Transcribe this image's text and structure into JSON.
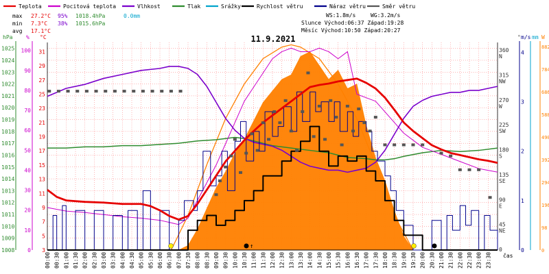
{
  "legend": [
    {
      "label": "Teplota",
      "color": "#e60000"
    },
    {
      "label": "Pocitová teplota",
      "color": "#cc00cc"
    },
    {
      "label": "Vlhkost",
      "color": "#7a00cc"
    },
    {
      "label": "Tlak",
      "color": "#2e8b2e"
    },
    {
      "label": "Srážky",
      "color": "#00a3cc"
    },
    {
      "label": "Rychlost větru",
      "color": "#000000"
    },
    {
      "label": "Náraz větru",
      "color": "#00008b"
    },
    {
      "label": "Směr větru",
      "color": "#555555"
    }
  ],
  "stats": {
    "max": {
      "label": "max",
      "temp": "27.2°C",
      "hum": "95%",
      "press": "1018.4hPa",
      "rain": "0.0mm"
    },
    "min": {
      "label": "min",
      "temp": "7.3°C",
      "hum": "38%",
      "press": "1015.6hPa"
    },
    "avg": {
      "label": "avg",
      "temp": "17.1°C"
    },
    "ws": "WS:1.8m/s",
    "wg": "WG:3.2m/s",
    "sun": "Slunce Východ:06:37  Západ:19:28",
    "moon": "Měsíc  Východ:10:50  Západ:20:27"
  },
  "date_title": "11.9.2021",
  "axis_units": {
    "hpa": "hPa",
    "pct": "%",
    "degc": "°C",
    "deg": "°",
    "ms": "m/s",
    "mm": "mm",
    "w": "W",
    "cas": "čas"
  },
  "colors": {
    "temp": "#e60000",
    "feels": "#cc00cc",
    "humidity": "#7a00cc",
    "pressure": "#2e8b2e",
    "rain": "#00a3cc",
    "wind": "#000000",
    "gust": "#00008b",
    "direction": "#555555",
    "solar": "#ff8000",
    "grid": "#ff0000"
  },
  "chart_data": {
    "type": "line",
    "title": "11.9.2021",
    "x_unit": "hour of day",
    "xlim": [
      0,
      24
    ],
    "x_tick_labels": [
      "00:00",
      "00:30",
      "01:00",
      "01:30",
      "02:00",
      "02:30",
      "03:00",
      "03:30",
      "04:00",
      "04:30",
      "05:00",
      "05:30",
      "06:00",
      "06:30",
      "07:00",
      "07:30",
      "08:00",
      "08:30",
      "09:00",
      "09:30",
      "10:00",
      "10:30",
      "11:00",
      "11:30",
      "12:00",
      "12:30",
      "13:00",
      "13:30",
      "14:00",
      "14:30",
      "15:00",
      "15:30",
      "16:00",
      "16:30",
      "17:00",
      "17:30",
      "18:00",
      "18:30",
      "19:00",
      "19:30",
      "20:00",
      "20:30",
      "21:00",
      "21:30",
      "22:00",
      "22:30",
      "23:00",
      "23:30"
    ],
    "y_axes": {
      "pressure_hpa": {
        "ticks": [
          "1008",
          "1009",
          "1010",
          "1011",
          "1012",
          "1013",
          "1014",
          "1015",
          "1016",
          "1017",
          "1018",
          "1019",
          "1020",
          "1021",
          "1022",
          "1023",
          "1024",
          "1025"
        ],
        "range": [
          1008,
          1025.5
        ]
      },
      "humidity_pct": {
        "ticks": [
          "0",
          "10",
          "20",
          "30",
          "40",
          "50",
          "60",
          "70",
          "80",
          "90",
          "100"
        ],
        "range": [
          0,
          104
        ]
      },
      "temperature_c": {
        "ticks": [
          "3",
          "5",
          "7",
          "9",
          "11",
          "13",
          "15",
          "17",
          "19",
          "21",
          "23",
          "25",
          "27",
          "29",
          "31"
        ],
        "range": [
          3,
          32.3
        ]
      },
      "direction_deg": {
        "ticks": [
          "0",
          "45\nNE",
          "90\nE",
          "135\nSE",
          "180\nS",
          "225\nSW",
          "270\nW",
          "315\nNW",
          "360\nN"
        ],
        "range": [
          0,
          375
        ]
      },
      "wind_ms": {
        "ticks": [
          "0",
          "1",
          "2",
          "3",
          "4"
        ],
        "range": [
          0,
          4.2
        ]
      },
      "solar_w": {
        "ticks": [
          "0",
          "98",
          "196",
          "294",
          "392",
          "490",
          "588",
          "686",
          "784",
          "882"
        ],
        "range": [
          0,
          900
        ]
      }
    },
    "series": [
      {
        "name": "Teplota",
        "axis": "temperature_c",
        "x": [
          0,
          0.5,
          1,
          2,
          3,
          4,
          5,
          5.5,
          6,
          6.5,
          7,
          7.5,
          8,
          8.5,
          9,
          9.5,
          10,
          10.5,
          11,
          11.5,
          12,
          12.5,
          13,
          13.5,
          14,
          14.5,
          15,
          15.5,
          16,
          16.5,
          17,
          17.5,
          18,
          18.5,
          19,
          19.5,
          20,
          20.5,
          21,
          21.5,
          22,
          22.5,
          23,
          23.5,
          24
        ],
        "y": [
          11.5,
          10.5,
          10,
          9.8,
          9.7,
          9.5,
          9.5,
          9.2,
          8.6,
          7.8,
          7.3,
          7.8,
          9.5,
          11.5,
          13.5,
          15.5,
          17,
          18.5,
          19.8,
          21,
          22,
          23,
          24,
          25,
          26,
          26.3,
          26.5,
          26.8,
          27,
          27.2,
          26.6,
          25.8,
          24.5,
          22.8,
          21,
          19.8,
          18.8,
          17.8,
          17.2,
          16.7,
          16.4,
          16.1,
          15.8,
          15.6,
          15.3
        ]
      },
      {
        "name": "Pocitová teplota",
        "axis": "temperature_c",
        "x": [
          0,
          1,
          2,
          3,
          4,
          5,
          6,
          6.5,
          7,
          7.5,
          8,
          8.5,
          9,
          9.5,
          10,
          10.5,
          11,
          11.5,
          12,
          12.5,
          13,
          13.5,
          14,
          14.5,
          15,
          15.5,
          16,
          16.5,
          17,
          17.5,
          18,
          18.5,
          19,
          19.5,
          20,
          21,
          22,
          23,
          24
        ],
        "y": [
          9,
          8.5,
          8.3,
          8,
          7.7,
          7.5,
          7.2,
          6.9,
          6.6,
          7.5,
          10,
          12.5,
          15,
          18,
          21,
          24,
          26,
          28,
          30,
          31,
          31.5,
          31,
          31,
          31.5,
          31,
          30,
          31,
          25,
          24.5,
          24,
          22.5,
          21,
          19.5,
          18.5,
          17.5,
          16.5,
          15.5,
          14.5,
          14
        ]
      },
      {
        "name": "Vlhkost",
        "axis": "humidity_pct",
        "x": [
          0,
          0.5,
          1,
          2,
          3,
          4,
          5,
          6,
          6.5,
          7,
          7.5,
          8,
          8.5,
          9,
          9.5,
          10,
          10.5,
          11,
          11.5,
          12,
          12.5,
          13,
          13.5,
          14,
          14.5,
          15,
          15.5,
          16,
          16.5,
          17,
          17.5,
          18,
          18.5,
          19,
          19.5,
          20,
          20.5,
          21,
          21.5,
          22,
          22.5,
          23,
          23.5,
          24
        ],
        "y": [
          77,
          79,
          81,
          83,
          86,
          88,
          90,
          91,
          92,
          92,
          91,
          88,
          82,
          74,
          66,
          60,
          56,
          54,
          53,
          52,
          50,
          47,
          44,
          42,
          41,
          40,
          40,
          39,
          40,
          41,
          44,
          50,
          58,
          66,
          72,
          75,
          77,
          78,
          79,
          79,
          80,
          80,
          81,
          82
        ]
      },
      {
        "name": "Tlak",
        "axis": "pressure_hpa",
        "x": [
          0,
          1,
          2,
          3,
          4,
          5,
          6,
          7,
          8,
          9,
          10,
          10.5,
          11,
          11.5,
          12,
          13,
          14,
          15,
          15.5,
          16,
          17,
          17.5,
          18,
          18.5,
          19,
          20,
          21,
          22,
          23,
          24
        ],
        "y": [
          1016.6,
          1016.6,
          1016.7,
          1016.7,
          1016.8,
          1016.8,
          1016.9,
          1017.0,
          1017.2,
          1017.3,
          1017.5,
          1017.4,
          1017.2,
          1017.0,
          1016.8,
          1016.6,
          1016.4,
          1016.2,
          1016.0,
          1015.8,
          1015.7,
          1015.6,
          1015.6,
          1015.7,
          1015.9,
          1016.2,
          1016.4,
          1016.3,
          1016.4,
          1016.6
        ]
      },
      {
        "name": "Směr větru",
        "axis": "direction_deg",
        "x": [
          0.1,
          0.6,
          1.1,
          1.6,
          2.1,
          2.6,
          3.1,
          3.6,
          4.1,
          4.6,
          5.1,
          5.6,
          6.1,
          6.6,
          7.1,
          9.0,
          9.2,
          9.5,
          9.8,
          10.0,
          10.3,
          10.6,
          10.9,
          11.2,
          11.5,
          11.8,
          12.1,
          12.4,
          12.7,
          13.0,
          13.3,
          13.6,
          13.9,
          14.2,
          14.5,
          14.8,
          15.1,
          15.4,
          15.7,
          16.0,
          16.3,
          16.6,
          16.9,
          17.2,
          17.5,
          18.0,
          18.5,
          19.0,
          19.5,
          20.0,
          21.0,
          21.5,
          22.0,
          22.5,
          23.0,
          23.6
        ],
        "y": [
          287,
          287,
          287,
          287,
          287,
          287,
          287,
          287,
          287,
          287,
          287,
          287,
          287,
          287,
          287,
          100,
          125,
          150,
          170,
          200,
          140,
          175,
          210,
          180,
          230,
          200,
          250,
          230,
          270,
          215,
          180,
          250,
          320,
          205,
          260,
          200,
          270,
          240,
          190,
          260,
          215,
          255,
          230,
          215,
          240,
          190,
          190,
          190,
          190,
          190,
          175,
          170,
          145,
          145,
          145,
          95
        ]
      },
      {
        "name": "Rychlost větru",
        "axis": "wind_ms",
        "x": [
          0,
          0.5,
          1,
          2,
          3,
          4,
          5,
          6,
          7,
          7.5,
          8,
          8.5,
          9,
          9.5,
          10,
          10.5,
          11,
          11.5,
          12,
          12.5,
          13,
          13.5,
          14,
          14.5,
          15,
          15.5,
          16,
          16.5,
          17,
          17.5,
          18,
          18.5,
          19,
          20,
          21,
          22,
          23,
          24
        ],
        "y": [
          0,
          0,
          0,
          0,
          0,
          0,
          0,
          0,
          0,
          0.4,
          0.6,
          0.7,
          0.5,
          0.6,
          0.8,
          1.0,
          1.2,
          1.5,
          1.5,
          1.8,
          2.0,
          2.2,
          2.5,
          2.0,
          1.7,
          1.9,
          1.8,
          1.9,
          1.6,
          1.4,
          1.0,
          0.6,
          0.3,
          0,
          0,
          0,
          0,
          0
        ]
      },
      {
        "name": "Náraz větru",
        "axis": "wind_ms",
        "x": [
          0,
          0.3,
          0.5,
          0.8,
          1,
          1.5,
          2,
          2.5,
          3,
          3.5,
          4,
          4.3,
          4.8,
          5.1,
          5.5,
          6,
          6.5,
          7,
          7.3,
          7.8,
          8,
          8.3,
          8.7,
          9,
          9.3,
          9.6,
          10,
          10.3,
          10.6,
          11,
          11.3,
          11.6,
          12,
          12.3,
          12.6,
          13,
          13.3,
          13.6,
          14,
          14.3,
          14.6,
          15,
          15.3,
          15.6,
          16,
          16.3,
          16.6,
          17,
          17.3,
          17.6,
          18,
          18.3,
          18.6,
          19,
          19.5,
          20,
          20.5,
          21,
          21.3,
          21.6,
          22,
          22.3,
          22.6,
          23,
          23.3,
          23.6,
          24
        ],
        "y": [
          0,
          0.7,
          0,
          0.9,
          0,
          0.8,
          0,
          0.8,
          0,
          0.7,
          0,
          0.8,
          0,
          1.2,
          0,
          0.8,
          0,
          0.6,
          1.0,
          0.8,
          1.2,
          2.0,
          1.3,
          1.5,
          2.0,
          1.2,
          2.2,
          2.6,
          1.8,
          2.4,
          2.0,
          2.8,
          2.3,
          2.5,
          2.9,
          2.4,
          3.2,
          2.6,
          3.2,
          2.8,
          3.0,
          2.6,
          3.0,
          2.4,
          2.8,
          2.3,
          2.6,
          2.4,
          2.0,
          1.8,
          1.5,
          1.2,
          0.8,
          0.5,
          0,
          0,
          0.6,
          0,
          0.7,
          0.4,
          0.9,
          0.5,
          0.8,
          0,
          0.7,
          0.4,
          0
        ]
      },
      {
        "name": "Sluneční záření",
        "axis": "solar_w",
        "x": [
          7,
          7.5,
          8,
          8.5,
          9,
          9.5,
          10,
          10.5,
          11,
          11.5,
          12,
          12.5,
          13,
          13.5,
          14,
          14.5,
          15,
          15.5,
          16,
          16.5,
          17,
          17.5,
          18,
          18.5,
          19,
          19.5
        ],
        "y": [
          0,
          20,
          90,
          180,
          270,
          340,
          420,
          480,
          560,
          640,
          690,
          740,
          760,
          840,
          860,
          800,
          740,
          780,
          700,
          720,
          540,
          400,
          300,
          170,
          60,
          0
        ]
      },
      {
        "name": "Teoretické záření",
        "axis": "solar_w",
        "x": [
          6.6,
          7.5,
          8.5,
          9.5,
          10.5,
          11.5,
          12.5,
          13.0,
          13.5,
          14.5,
          15.5,
          16.5,
          17.5,
          18.5,
          19.5
        ],
        "y": [
          0,
          150,
          370,
          570,
          720,
          830,
          880,
          890,
          880,
          830,
          720,
          570,
          370,
          150,
          0
        ]
      }
    ]
  }
}
